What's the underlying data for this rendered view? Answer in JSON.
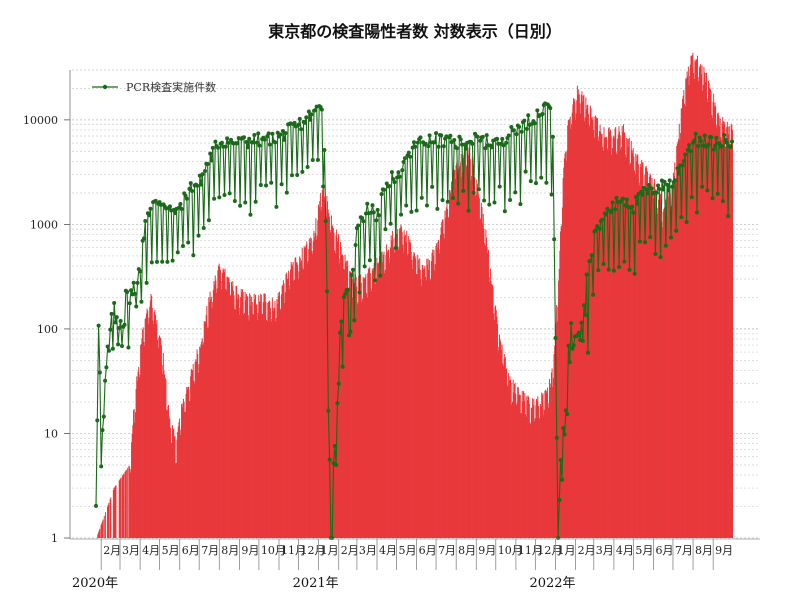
{
  "chart_data": {
    "type": "bar",
    "title": "東京都の検査陽性者数 対数表示（日別）",
    "xlabel": "",
    "ylabel": "",
    "y_scale": "log",
    "ylim": [
      1,
      30000
    ],
    "y_ticks": [
      1,
      10,
      100,
      1000,
      10000
    ],
    "y_tick_labels": [
      "1",
      "10",
      "100",
      "1000",
      "10000"
    ],
    "grid": true,
    "legend": {
      "position": "top-left",
      "entries": [
        "PCR検査実施件数"
      ]
    },
    "x_start_date": "2020-01-24",
    "x_end_date": "2022-09-30",
    "x_tick_labels": [
      {
        "date": "2020-02-01",
        "label": "2月"
      },
      {
        "date": "2020-03-01",
        "label": "3月"
      },
      {
        "date": "2020-04-01",
        "label": "4月"
      },
      {
        "date": "2020-05-01",
        "label": "5月"
      },
      {
        "date": "2020-06-01",
        "label": "6月"
      },
      {
        "date": "2020-07-01",
        "label": "7月"
      },
      {
        "date": "2020-08-01",
        "label": "8月"
      },
      {
        "date": "2020-09-01",
        "label": "9月"
      },
      {
        "date": "2020-10-01",
        "label": "10月"
      },
      {
        "date": "2020-11-01",
        "label": "11月"
      },
      {
        "date": "2020-12-01",
        "label": "12月"
      },
      {
        "date": "2021-01-01",
        "label": "1月"
      },
      {
        "date": "2021-02-01",
        "label": "2月"
      },
      {
        "date": "2021-03-01",
        "label": "3月"
      },
      {
        "date": "2021-04-01",
        "label": "4月"
      },
      {
        "date": "2021-05-01",
        "label": "5月"
      },
      {
        "date": "2021-06-01",
        "label": "6月"
      },
      {
        "date": "2021-07-01",
        "label": "7月"
      },
      {
        "date": "2021-08-01",
        "label": "8月"
      },
      {
        "date": "2021-09-01",
        "label": "9月"
      },
      {
        "date": "2021-10-01",
        "label": "10月"
      },
      {
        "date": "2021-11-01",
        "label": "11月"
      },
      {
        "date": "2021-12-01",
        "label": "12月"
      },
      {
        "date": "2022-01-01",
        "label": "1月"
      },
      {
        "date": "2022-02-01",
        "label": "2月"
      },
      {
        "date": "2022-03-01",
        "label": "3月"
      },
      {
        "date": "2022-04-01",
        "label": "4月"
      },
      {
        "date": "2022-05-01",
        "label": "5月"
      },
      {
        "date": "2022-06-01",
        "label": "6月"
      },
      {
        "date": "2022-07-01",
        "label": "7月"
      },
      {
        "date": "2022-08-01",
        "label": "8月"
      },
      {
        "date": "2022-09-01",
        "label": "9月"
      }
    ],
    "year_labels": [
      {
        "date": "2020-01-24",
        "label": "2020年"
      },
      {
        "date": "2021-01-01",
        "label": "2021年"
      },
      {
        "date": "2022-01-01",
        "label": "2022年"
      }
    ],
    "series": [
      {
        "name": "",
        "kind": "bar",
        "color": "#e8383b",
        "description_points": [
          [
            "2020-01-24",
            1
          ],
          [
            "2020-02-20",
            3
          ],
          [
            "2020-03-15",
            5
          ],
          [
            "2020-03-25",
            30
          ],
          [
            "2020-04-05",
            100
          ],
          [
            "2020-04-12",
            160
          ],
          [
            "2020-04-18",
            200
          ],
          [
            "2020-04-25",
            120
          ],
          [
            "2020-05-05",
            60
          ],
          [
            "2020-05-15",
            15
          ],
          [
            "2020-05-25",
            8
          ],
          [
            "2020-06-05",
            20
          ],
          [
            "2020-06-20",
            40
          ],
          [
            "2020-07-01",
            70
          ],
          [
            "2020-07-15",
            180
          ],
          [
            "2020-08-01",
            420
          ],
          [
            "2020-08-10",
            350
          ],
          [
            "2020-08-25",
            230
          ],
          [
            "2020-09-10",
            200
          ],
          [
            "2020-09-25",
            190
          ],
          [
            "2020-10-10",
            200
          ],
          [
            "2020-10-25",
            170
          ],
          [
            "2020-11-10",
            300
          ],
          [
            "2020-11-25",
            450
          ],
          [
            "2020-12-10",
            550
          ],
          [
            "2020-12-25",
            850
          ],
          [
            "2021-01-07",
            2400
          ],
          [
            "2021-01-15",
            1500
          ],
          [
            "2021-01-25",
            900
          ],
          [
            "2021-02-05",
            600
          ],
          [
            "2021-02-15",
            400
          ],
          [
            "2021-02-28",
            280
          ],
          [
            "2021-03-10",
            300
          ],
          [
            "2021-03-25",
            380
          ],
          [
            "2021-04-10",
            500
          ],
          [
            "2021-04-25",
            800
          ],
          [
            "2021-05-10",
            900
          ],
          [
            "2021-05-25",
            600
          ],
          [
            "2021-06-05",
            430
          ],
          [
            "2021-06-20",
            420
          ],
          [
            "2021-07-01",
            650
          ],
          [
            "2021-07-15",
            1300
          ],
          [
            "2021-07-28",
            3000
          ],
          [
            "2021-08-10",
            4500
          ],
          [
            "2021-08-15",
            5700
          ],
          [
            "2021-08-25",
            4000
          ],
          [
            "2021-09-05",
            1800
          ],
          [
            "2021-09-15",
            800
          ],
          [
            "2021-09-25",
            250
          ],
          [
            "2021-10-05",
            90
          ],
          [
            "2021-10-15",
            50
          ],
          [
            "2021-10-25",
            30
          ],
          [
            "2021-11-05",
            25
          ],
          [
            "2021-11-20",
            20
          ],
          [
            "2021-12-05",
            20
          ],
          [
            "2021-12-20",
            25
          ],
          [
            "2021-12-28",
            50
          ],
          [
            "2022-01-05",
            300
          ],
          [
            "2022-01-12",
            3000
          ],
          [
            "2022-01-20",
            10000
          ],
          [
            "2022-02-01",
            17000
          ],
          [
            "2022-02-05",
            21000
          ],
          [
            "2022-02-15",
            15000
          ],
          [
            "2022-02-28",
            11000
          ],
          [
            "2022-03-15",
            8000
          ],
          [
            "2022-03-31",
            7500
          ],
          [
            "2022-04-15",
            8000
          ],
          [
            "2022-04-30",
            5000
          ],
          [
            "2022-05-15",
            3500
          ],
          [
            "2022-05-31",
            2600
          ],
          [
            "2022-06-15",
            1500
          ],
          [
            "2022-06-30",
            2500
          ],
          [
            "2022-07-10",
            8000
          ],
          [
            "2022-07-20",
            25000
          ],
          [
            "2022-07-28",
            40000
          ],
          [
            "2022-08-10",
            35000
          ],
          [
            "2022-08-25",
            22000
          ],
          [
            "2022-09-10",
            10000
          ],
          [
            "2022-09-30",
            8000
          ]
        ]
      },
      {
        "name": "PCR検査実施件数",
        "kind": "line",
        "color": "#1a6a1a",
        "description_points": [
          [
            "2020-01-24",
            3
          ],
          [
            "2020-01-28",
            210
          ],
          [
            "2020-02-01",
            5
          ],
          [
            "2020-02-10",
            50
          ],
          [
            "2020-02-20",
            120
          ],
          [
            "2020-03-05",
            150
          ],
          [
            "2020-03-20",
            200
          ],
          [
            "2020-04-01",
            400
          ],
          [
            "2020-04-10",
            1200
          ],
          [
            "2020-04-20",
            1500
          ],
          [
            "2020-05-01",
            1700
          ],
          [
            "2020-05-10",
            1600
          ],
          [
            "2020-05-20",
            1300
          ],
          [
            "2020-06-01",
            1500
          ],
          [
            "2020-06-15",
            2200
          ],
          [
            "2020-07-01",
            2500
          ],
          [
            "2020-07-15",
            4000
          ],
          [
            "2020-08-01",
            6500
          ],
          [
            "2020-09-01",
            6000
          ],
          [
            "2020-10-01",
            6500
          ],
          [
            "2020-11-01",
            7000
          ],
          [
            "2020-12-01",
            9000
          ],
          [
            "2020-12-25",
            12000
          ],
          [
            "2021-01-07",
            14000
          ],
          [
            "2021-01-10",
            6000
          ],
          [
            "2021-01-20",
            1
          ],
          [
            "2021-01-25",
            5
          ],
          [
            "2021-02-01",
            50
          ],
          [
            "2021-02-10",
            150
          ],
          [
            "2021-02-20",
            200
          ],
          [
            "2021-03-01",
            1000
          ],
          [
            "2021-03-10",
            1200
          ],
          [
            "2021-03-20",
            1500
          ],
          [
            "2021-04-01",
            1200
          ],
          [
            "2021-04-15",
            2500
          ],
          [
            "2021-05-01",
            3000
          ],
          [
            "2021-05-15",
            4000
          ],
          [
            "2021-06-01",
            6000
          ],
          [
            "2021-07-01",
            6500
          ],
          [
            "2021-08-01",
            6000
          ],
          [
            "2021-09-01",
            6500
          ],
          [
            "2021-10-01",
            6000
          ],
          [
            "2021-11-01",
            8000
          ],
          [
            "2021-12-01",
            11000
          ],
          [
            "2021-12-25",
            14000
          ],
          [
            "2021-12-28",
            6000
          ],
          [
            "2022-01-05",
            1
          ],
          [
            "2022-01-10",
            5
          ],
          [
            "2022-01-20",
            50
          ],
          [
            "2022-02-01",
            150
          ],
          [
            "2022-02-15",
            200
          ],
          [
            "2022-03-01",
            800
          ],
          [
            "2022-03-15",
            1200
          ],
          [
            "2022-04-01",
            1500
          ],
          [
            "2022-04-15",
            1800
          ],
          [
            "2022-05-01",
            1500
          ],
          [
            "2022-05-15",
            2000
          ],
          [
            "2022-06-01",
            2200
          ],
          [
            "2022-07-01",
            2500
          ],
          [
            "2022-07-15",
            4000
          ],
          [
            "2022-08-01",
            6500
          ],
          [
            "2022-09-01",
            6000
          ],
          [
            "2022-09-30",
            6500
          ]
        ]
      }
    ]
  }
}
